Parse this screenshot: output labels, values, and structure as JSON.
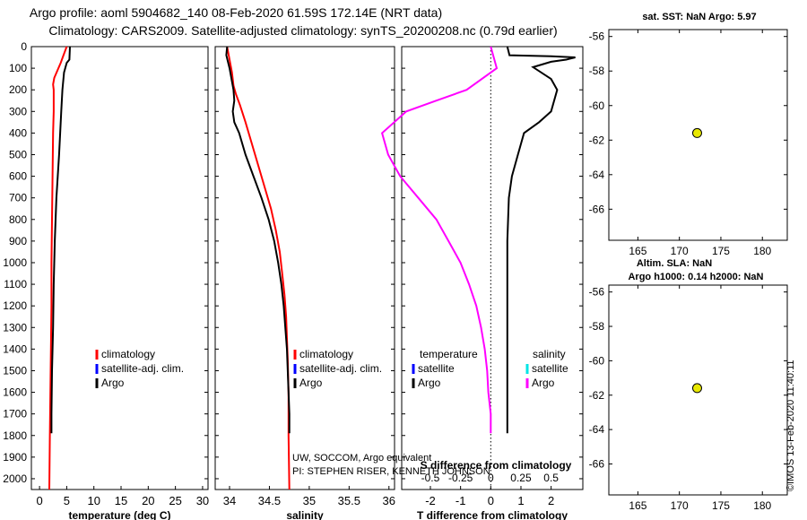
{
  "header": {
    "line1": "Argo profile: aoml 5904682_140 08-Feb-2020 61.59S 172.14E (NRT data)",
    "line2": "Climatology: CARS2009. Satellite-adjusted climatology: synTS_20200208.nc (0.79d earlier)"
  },
  "credits": {
    "line1": "UW, SOCCOM, Argo equivalent",
    "line2": "PI: STEPHEN RISER, KENNETH JOHNSON"
  },
  "watermark": "©IMOS 13-Feb-2020 11:40:11",
  "colors": {
    "climatology": "#ff0000",
    "satellite": "#0000ff",
    "argo": "#000000",
    "sat_salinity": "#00e5e5",
    "argo_salinity": "#ff00ff",
    "marker": "#e8e800"
  },
  "chart_data": [
    {
      "id": "temperature",
      "type": "line",
      "xlabel": "temperature (deg C)",
      "ylabel": "",
      "xlim": [
        -1.5,
        31
      ],
      "ylim": [
        2050,
        0
      ],
      "xticks": [
        0,
        5,
        10,
        15,
        20,
        25,
        30
      ],
      "yticks": [
        0,
        100,
        200,
        300,
        400,
        500,
        600,
        700,
        800,
        900,
        1000,
        1100,
        1200,
        1300,
        1400,
        1500,
        1600,
        1700,
        1800,
        1900,
        2000
      ],
      "legend": [
        "climatology",
        "satellite-adj. clim.",
        "Argo"
      ],
      "series": [
        {
          "name": "climatology",
          "color": "#ff0000",
          "points": [
            [
              5.0,
              0
            ],
            [
              4.4,
              40
            ],
            [
              3.9,
              75
            ],
            [
              3.3,
              110
            ],
            [
              2.7,
              145
            ],
            [
              2.5,
              175
            ],
            [
              2.6,
              200
            ],
            [
              2.6,
              300
            ],
            [
              2.5,
              400
            ],
            [
              2.4,
              600
            ],
            [
              2.3,
              800
            ],
            [
              2.2,
              1000
            ],
            [
              2.2,
              1200
            ],
            [
              2.1,
              1400
            ],
            [
              2.0,
              1600
            ],
            [
              1.9,
              1800
            ],
            [
              1.8,
              2050
            ]
          ]
        },
        {
          "name": "Argo",
          "color": "#000000",
          "points": [
            [
              5.6,
              0
            ],
            [
              5.5,
              60
            ],
            [
              5.0,
              75
            ],
            [
              4.5,
              120
            ],
            [
              4.2,
              200
            ],
            [
              4.0,
              300
            ],
            [
              3.6,
              500
            ],
            [
              3.1,
              700
            ],
            [
              2.8,
              900
            ],
            [
              2.6,
              1100
            ],
            [
              2.5,
              1300
            ],
            [
              2.3,
              1500
            ],
            [
              2.2,
              1700
            ],
            [
              2.2,
              1790
            ]
          ]
        }
      ]
    },
    {
      "id": "salinity",
      "type": "line",
      "xlabel": "salinity",
      "ylabel": "",
      "xlim": [
        33.82,
        36.07
      ],
      "ylim": [
        2050,
        0
      ],
      "xticks": [
        34,
        34.5,
        35,
        35.5,
        36
      ],
      "xticklabels": [
        "34",
        "34.5",
        "35",
        "35.5",
        "36"
      ],
      "legend": [
        "climatology",
        "satellite-adj. clim.",
        "Argo"
      ],
      "series": [
        {
          "name": "climatology",
          "color": "#ff0000",
          "points": [
            [
              33.97,
              0
            ],
            [
              34.0,
              60
            ],
            [
              34.03,
              120
            ],
            [
              34.05,
              180
            ],
            [
              34.08,
              220
            ],
            [
              34.13,
              270
            ],
            [
              34.2,
              350
            ],
            [
              34.28,
              450
            ],
            [
              34.36,
              550
            ],
            [
              34.44,
              650
            ],
            [
              34.52,
              750
            ],
            [
              34.58,
              850
            ],
            [
              34.63,
              950
            ],
            [
              34.66,
              1050
            ],
            [
              34.69,
              1150
            ],
            [
              34.71,
              1250
            ],
            [
              34.72,
              1350
            ],
            [
              34.73,
              1450
            ],
            [
              34.74,
              1600
            ],
            [
              34.74,
              1800
            ],
            [
              34.75,
              2050
            ]
          ]
        },
        {
          "name": "Argo",
          "color": "#000000",
          "points": [
            [
              33.97,
              0
            ],
            [
              33.96,
              40
            ],
            [
              34.0,
              100
            ],
            [
              34.05,
              200
            ],
            [
              34.06,
              250
            ],
            [
              34.04,
              300
            ],
            [
              34.06,
              350
            ],
            [
              34.12,
              400
            ],
            [
              34.2,
              500
            ],
            [
              34.3,
              600
            ],
            [
              34.4,
              700
            ],
            [
              34.49,
              800
            ],
            [
              34.56,
              900
            ],
            [
              34.61,
              1000
            ],
            [
              34.65,
              1100
            ],
            [
              34.68,
              1200
            ],
            [
              34.7,
              1300
            ],
            [
              34.72,
              1400
            ],
            [
              34.73,
              1500
            ],
            [
              34.74,
              1600
            ],
            [
              34.75,
              1700
            ],
            [
              34.75,
              1790
            ]
          ]
        }
      ]
    },
    {
      "id": "difference",
      "type": "line",
      "xlabel": "T difference from climatology",
      "ylabel": "",
      "xlim": [
        -2.95,
        3.05
      ],
      "ylim": [
        2050,
        0
      ],
      "xticks": [
        -2,
        -1,
        0,
        1,
        2
      ],
      "top_axis_title": "S difference from climatology",
      "top_xticks": [
        -0.5,
        -0.25,
        0,
        0.25,
        0.5
      ],
      "top_xticklabels": [
        "-0.5",
        "-0.25",
        "0",
        "0.25",
        "0.5"
      ],
      "legend_temperature": [
        "temperature",
        "satellite",
        "Argo"
      ],
      "legend_salinity": [
        "salinity",
        "satellite",
        "Argo"
      ],
      "series": [
        {
          "name": "T Argo - climatology",
          "color": "#000000",
          "points": [
            [
              0.55,
              0
            ],
            [
              0.62,
              40
            ],
            [
              2.0,
              45
            ],
            [
              2.8,
              50
            ],
            [
              2.5,
              60
            ],
            [
              2.0,
              70
            ],
            [
              1.4,
              95
            ],
            [
              2.0,
              150
            ],
            [
              2.2,
              200
            ],
            [
              2.0,
              300
            ],
            [
              1.6,
              350
            ],
            [
              1.1,
              400
            ],
            [
              0.9,
              500
            ],
            [
              0.7,
              600
            ],
            [
              0.6,
              700
            ],
            [
              0.55,
              900
            ],
            [
              0.55,
              1400
            ],
            [
              0.55,
              1790
            ]
          ]
        },
        {
          "name": "S Argo - climatology",
          "color": "#ff00ff",
          "points": [
            [
              0.0,
              0
            ],
            [
              0.05,
              100
            ],
            [
              -0.2,
              200
            ],
            [
              -0.45,
              250
            ],
            [
              -0.7,
              300
            ],
            [
              -0.9,
              400
            ],
            [
              -0.85,
              500
            ],
            [
              -0.75,
              600
            ],
            [
              -0.6,
              700
            ],
            [
              -0.45,
              800
            ],
            [
              -0.35,
              900
            ],
            [
              -0.25,
              1000
            ],
            [
              -0.18,
              1100
            ],
            [
              -0.12,
              1200
            ],
            [
              -0.08,
              1300
            ],
            [
              -0.05,
              1400
            ],
            [
              -0.03,
              1500
            ],
            [
              -0.02,
              1600
            ],
            [
              0.0,
              1700
            ],
            [
              0.0,
              1790
            ]
          ]
        }
      ]
    },
    {
      "id": "sst_map",
      "type": "scatter",
      "title": "sat. SST: NaN Argo: 5.97",
      "xlim": [
        161.5,
        183
      ],
      "ylim": [
        -67.8,
        -55.6
      ],
      "xticks": [
        165,
        170,
        175,
        180
      ],
      "yticks": [
        -56,
        -58,
        -60,
        -62,
        -64,
        -66
      ],
      "points": [
        [
          172.14,
          -61.59
        ]
      ]
    },
    {
      "id": "sla_map",
      "type": "scatter",
      "title": "Altim. SLA: NaN",
      "subtitle": "Argo h1000: 0.14 h2000: NaN",
      "xlim": [
        161.5,
        183
      ],
      "ylim": [
        -67.8,
        -55.6
      ],
      "xticks": [
        165,
        170,
        175,
        180
      ],
      "yticks": [
        -56,
        -58,
        -60,
        -62,
        -64,
        -66
      ],
      "points": [
        [
          172.14,
          -61.59
        ]
      ]
    }
  ]
}
